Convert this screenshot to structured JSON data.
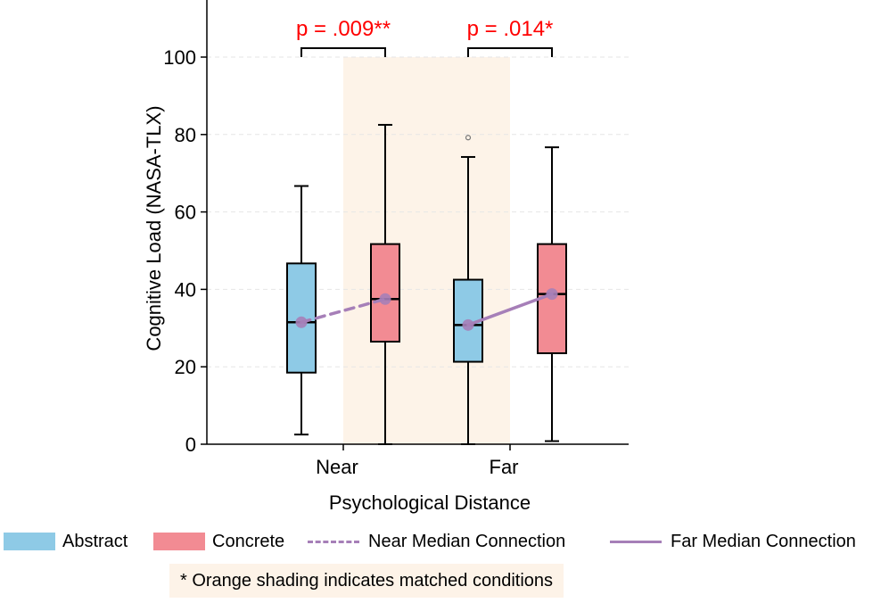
{
  "chart_data": {
    "type": "box",
    "title": "",
    "xlabel": "Psychological Distance",
    "ylabel": "Cognitive Load (NASA-TLX)",
    "ylim": [
      0,
      115
    ],
    "yticks": [
      0,
      20,
      40,
      60,
      80,
      100
    ],
    "grid": "horizontal-dashed",
    "categories": [
      "Near",
      "Far"
    ],
    "series": [
      {
        "name": "Abstract",
        "color": "#8ecae6",
        "boxes": [
          {
            "category": "Near",
            "min": 2.5,
            "q1": 18.5,
            "median": 31.5,
            "q3": 46.7,
            "max": 66.7,
            "outliers": []
          },
          {
            "category": "Far",
            "min": 0,
            "q1": 21.3,
            "median": 30.8,
            "q3": 42.5,
            "max": 74.2,
            "outliers": [
              79.2
            ]
          }
        ]
      },
      {
        "name": "Concrete",
        "color": "#f28b93",
        "boxes": [
          {
            "category": "Near",
            "min": 0,
            "q1": 26.5,
            "median": 37.5,
            "q3": 51.7,
            "max": 82.5,
            "outliers": []
          },
          {
            "category": "Far",
            "min": 0.8,
            "q1": 23.5,
            "median": 38.8,
            "q3": 51.7,
            "max": 76.7,
            "outliers": []
          }
        ]
      }
    ],
    "median_connections": [
      {
        "name": "Near Median Connection",
        "style": "dashed",
        "color": "#a67fb8",
        "from": 31.5,
        "to": 37.5
      },
      {
        "name": "Far Median Connection",
        "style": "solid",
        "color": "#a67fb8",
        "from": 30.8,
        "to": 38.8
      }
    ],
    "significance": [
      {
        "category": "Near",
        "label": "p = .009**"
      },
      {
        "category": "Far",
        "label": "p = .014*"
      }
    ],
    "shading": {
      "between": [
        "Near Concrete",
        "Far Abstract"
      ],
      "color": "#fdf3e8"
    },
    "legend": [
      "Abstract",
      "Concrete",
      "Near Median Connection",
      "Far Median Connection"
    ],
    "note": "* Orange shading indicates matched conditions"
  }
}
